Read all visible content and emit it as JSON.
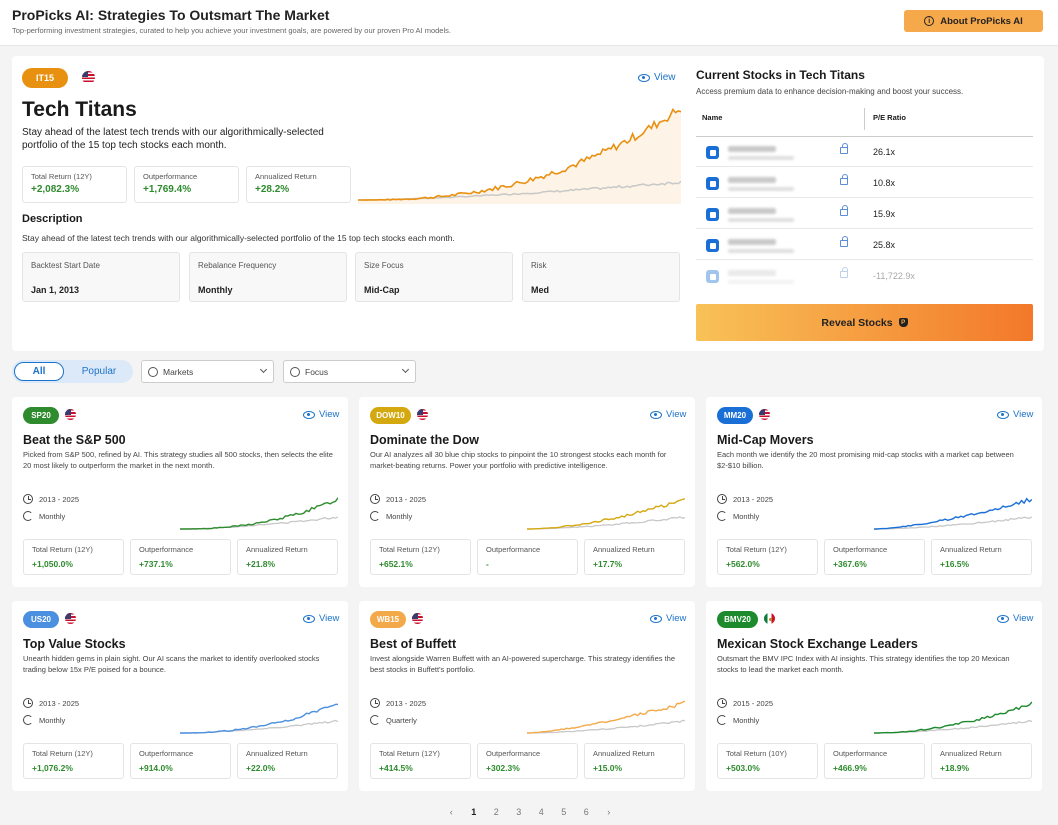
{
  "header": {
    "title": "ProPicks AI: Strategies To Outsmart The Market",
    "subtitle": "Top-performing investment strategies, curated to help you achieve your investment goals, are powered by our proven Pro AI models.",
    "about_button": "About ProPicks AI"
  },
  "hero": {
    "badge": "IT15",
    "badge_color": "#e8900f",
    "view_label": "View",
    "title": "Tech Titans",
    "description": "Stay ahead of the latest tech trends with our algorithmically-selected portfolio of the 15 top tech stocks each month.",
    "stats": [
      {
        "label": "Total Return (12Y)",
        "value": "+2,082.3%"
      },
      {
        "label": "Outperformance",
        "value": "+1,769.4%"
      },
      {
        "label": "Annualized Return",
        "value": "+28.2%"
      }
    ],
    "description_heading": "Description",
    "description_body": "Stay ahead of the latest tech trends with our algorithmically-selected portfolio of the 15 top tech stocks each month.",
    "info": [
      {
        "label": "Backtest Start Date",
        "value": "Jan 1, 2013"
      },
      {
        "label": "Rebalance Frequency",
        "value": "Monthly"
      },
      {
        "label": "Size Focus",
        "value": "Mid-Cap"
      },
      {
        "label": "Risk",
        "value": "Med"
      }
    ]
  },
  "current_stocks": {
    "title": "Current Stocks in Tech Titans",
    "subtitle": "Access premium data to enhance decision-making and boost your success.",
    "col_name": "Name",
    "col_pe": "P/E Ratio",
    "rows": [
      {
        "pe": "26.1x"
      },
      {
        "pe": "10.8x"
      },
      {
        "pe": "15.9x"
      },
      {
        "pe": "25.8x"
      },
      {
        "pe": "-11,722.9x"
      }
    ],
    "reveal_button": "Reveal Stocks"
  },
  "filters": {
    "all_label": "All",
    "popular_label": "Popular",
    "markets_label": "Markets",
    "focus_label": "Focus"
  },
  "cards": [
    {
      "badge": "SP20",
      "color": "#2e8b2e",
      "flag": "us",
      "view": "View",
      "title": "Beat the S&P 500",
      "desc": "Picked from S&P 500, refined by AI. This strategy studies all 500 stocks, then selects the elite 20 most likely to outperform the market in the next month.",
      "period": "2013 - 2025",
      "freq": "Monthly",
      "stats": [
        {
          "label": "Total Return (12Y)",
          "value": "+1,050.0%"
        },
        {
          "label": "Outperformance",
          "value": "+737.1%"
        },
        {
          "label": "Annualized Return",
          "value": "+21.8%"
        }
      ]
    },
    {
      "badge": "DOW10",
      "color": "#d4a80f",
      "flag": "us",
      "view": "View",
      "title": "Dominate the Dow",
      "desc": "Our AI analyzes all 30 blue chip stocks to pinpoint the 10 strongest stocks each month for market-beating returns. Power your portfolio with predictive intelligence.",
      "period": "2013 - 2025",
      "freq": "Monthly",
      "stats": [
        {
          "label": "Total Return (12Y)",
          "value": "+652.1%"
        },
        {
          "label": "Outperformance",
          "value": "-"
        },
        {
          "label": "Annualized Return",
          "value": "+17.7%"
        }
      ]
    },
    {
      "badge": "MM20",
      "color": "#1a6fd6",
      "flag": "us",
      "view": "View",
      "title": "Mid-Cap Movers",
      "desc": "Each month we identify the 20 most promising mid-cap stocks with a market cap between $2-$10 billion.",
      "period": "2013 - 2025",
      "freq": "Monthly",
      "stats": [
        {
          "label": "Total Return (12Y)",
          "value": "+562.0%"
        },
        {
          "label": "Outperformance",
          "value": "+367.6%"
        },
        {
          "label": "Annualized Return",
          "value": "+16.5%"
        }
      ]
    },
    {
      "badge": "US20",
      "color": "#4a8fe0",
      "flag": "us",
      "view": "View",
      "title": "Top Value Stocks",
      "desc": "Unearth hidden gems in plain sight. Our AI scans the market to identify overlooked stocks trading below 15x P/E poised for a bounce.",
      "period": "2013 - 2025",
      "freq": "Monthly",
      "stats": [
        {
          "label": "Total Return (12Y)",
          "value": "+1,076.2%"
        },
        {
          "label": "Outperformance",
          "value": "+914.0%"
        },
        {
          "label": "Annualized Return",
          "value": "+22.0%"
        }
      ]
    },
    {
      "badge": "WB15",
      "color": "#f3a94a",
      "flag": "us",
      "view": "View",
      "title": "Best of Buffett",
      "desc": "Invest alongside Warren Buffett with an AI-powered supercharge. This strategy identifies the best stocks in Buffett's portfolio.",
      "period": "2013 - 2025",
      "freq": "Quarterly",
      "stats": [
        {
          "label": "Total Return (12Y)",
          "value": "+414.5%"
        },
        {
          "label": "Outperformance",
          "value": "+302.3%"
        },
        {
          "label": "Annualized Return",
          "value": "+15.0%"
        }
      ]
    },
    {
      "badge": "BMV20",
      "color": "#1e8a2e",
      "flag": "mx",
      "view": "View",
      "title": "Mexican Stock Exchange Leaders",
      "desc": "Outsmart the BMV IPC Index with AI insights. This strategy identifies the top 20 Mexican stocks to lead the market each month.",
      "period": "2015 - 2025",
      "freq": "Monthly",
      "stats": [
        {
          "label": "Total Return (10Y)",
          "value": "+503.0%"
        },
        {
          "label": "Outperformance",
          "value": "+466.9%"
        },
        {
          "label": "Annualized Return",
          "value": "+18.9%"
        }
      ]
    }
  ],
  "pagination": {
    "prev": "‹",
    "pages": [
      "1",
      "2",
      "3",
      "4",
      "5",
      "6"
    ],
    "next": "›",
    "current": "1"
  }
}
